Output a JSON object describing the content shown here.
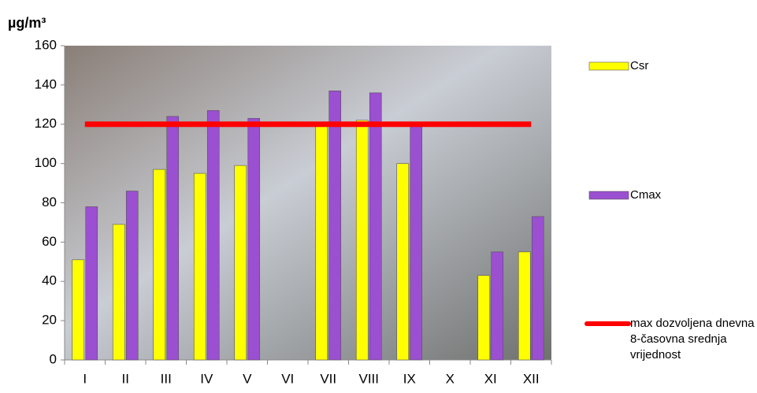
{
  "chart_data": {
    "type": "bar",
    "y_label": "µg/m³",
    "categories": [
      "I",
      "II",
      "III",
      "IV",
      "V",
      "VI",
      "VII",
      "VIII",
      "IX",
      "X",
      "XI",
      "XII"
    ],
    "series": [
      {
        "name": "Csr",
        "color": "#ffff00",
        "values": [
          51,
          69,
          97,
          95,
          99,
          null,
          121,
          122,
          100,
          null,
          43,
          55
        ]
      },
      {
        "name": "Cmax",
        "color": "#9b4fd1",
        "values": [
          78,
          86,
          124,
          127,
          123,
          null,
          137,
          136,
          119,
          null,
          55,
          73
        ]
      },
      {
        "name": "max dozvoljena dnevna 8-časovna srednja vrijednost",
        "type": "line",
        "color": "#ff0000",
        "values": [
          120,
          120,
          120,
          120,
          120,
          120,
          120,
          120,
          120,
          120,
          120,
          120
        ]
      }
    ],
    "ylim": [
      0,
      160
    ],
    "yticks": [
      0,
      20,
      40,
      60,
      80,
      100,
      120,
      140,
      160
    ]
  }
}
